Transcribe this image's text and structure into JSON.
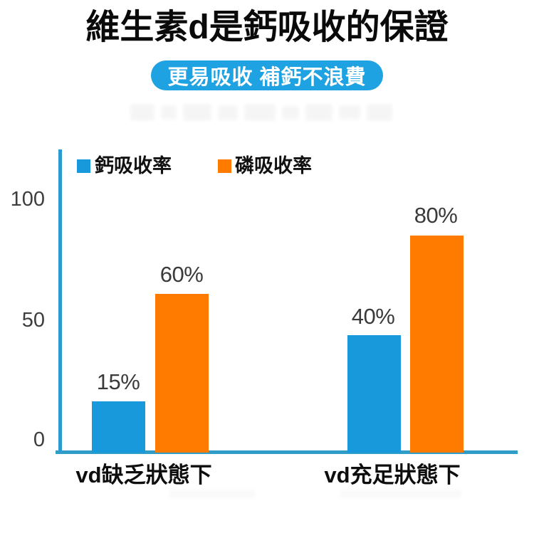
{
  "title": "維生素d是鈣吸收的保證",
  "badge": {
    "label": "更易吸收 補鈣不浪費",
    "bg_color": "#1ea2e2",
    "text_color": "#ffffff"
  },
  "chart_data": {
    "type": "bar",
    "title": "",
    "xlabel": "",
    "ylabel": "",
    "categories": [
      "vd缺乏狀態下",
      "vd充足狀態下"
    ],
    "series": [
      {
        "name": "鈣吸收率",
        "color": "#1799dc",
        "values": [
          15,
          40
        ]
      },
      {
        "name": "磷吸收率",
        "color": "#ff7b00",
        "values": [
          60,
          80
        ]
      }
    ],
    "bars": [
      {
        "category": "vd缺乏狀態下",
        "series": "鈣吸收率",
        "value": 15,
        "label": "15%",
        "drawn_value": 21,
        "color": "#1799dc"
      },
      {
        "category": "vd缺乏狀態下",
        "series": "磷吸收率",
        "value": 60,
        "label": "60%",
        "drawn_value": 65,
        "color": "#ff7b00"
      },
      {
        "category": "vd充足狀態下",
        "series": "鈣吸收率",
        "value": 40,
        "label": "40%",
        "drawn_value": 48,
        "color": "#1799dc"
      },
      {
        "category": "vd充足狀態下",
        "series": "磷吸收率",
        "value": 80,
        "label": "80%",
        "drawn_value": 89,
        "color": "#ff7b00"
      }
    ],
    "ylim": [
      0,
      115
    ],
    "yticks": [
      0,
      50,
      100
    ],
    "ytick_labels": [
      "0",
      "50",
      "100"
    ],
    "grid": false,
    "legend_position": "top-left-inside",
    "axis_color": "#2a9ad0",
    "value_label_color": "#3a3a3a"
  }
}
